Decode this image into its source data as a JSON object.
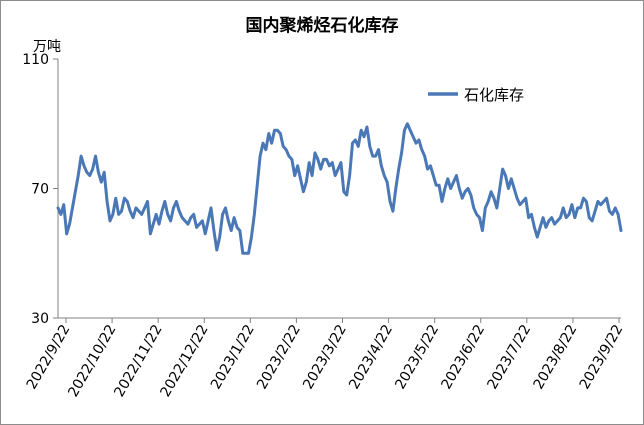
{
  "chart_data": {
    "type": "line",
    "title": "国内聚烯烃石化库存",
    "ylabel": "万吨",
    "xlabel": "",
    "ylim": [
      30,
      110
    ],
    "yticks": [
      30,
      70,
      110
    ],
    "xtick_labels": [
      "2022/9/22",
      "2022/10/22",
      "2022/11/22",
      "2022/12/22",
      "2023/1/22",
      "2023/2/22",
      "2023/3/22",
      "2023/4/22",
      "2023/5/22",
      "2023/6/22",
      "2023/7/22",
      "2023/8/22",
      "2023/9/22"
    ],
    "grid": false,
    "legend_position": "top-right",
    "series": [
      {
        "name": "石化库存",
        "color": "#4a78b6",
        "values": [
          64,
          62,
          65,
          56,
          59,
          64,
          69,
          74,
          80,
          77,
          75,
          74,
          76,
          80,
          75,
          72,
          75,
          66,
          60,
          62,
          67,
          62,
          63,
          67,
          66,
          63,
          61,
          64,
          63,
          62,
          64,
          66,
          56,
          59,
          62,
          59,
          63,
          66,
          62,
          60,
          64,
          66,
          63,
          61,
          60,
          59,
          61,
          62,
          58,
          59,
          60,
          56,
          60,
          64,
          57,
          51,
          55,
          62,
          64,
          60,
          57,
          61,
          58,
          57,
          50,
          50,
          50,
          55,
          62,
          71,
          80,
          84,
          82,
          87,
          84,
          88,
          88,
          87,
          83,
          82,
          80,
          79,
          74,
          77,
          73,
          69,
          72,
          78,
          74,
          81,
          79,
          76,
          79,
          79,
          77,
          78,
          74,
          76,
          78,
          69,
          68,
          74,
          84,
          85,
          83,
          88,
          86,
          89,
          83,
          80,
          80,
          82,
          77,
          74,
          72,
          66,
          63,
          70,
          76,
          81,
          88,
          90,
          88,
          86,
          84,
          85,
          82,
          80,
          76,
          77,
          74,
          71,
          71,
          66,
          70,
          73,
          70,
          72,
          74,
          70,
          67,
          69,
          70,
          68,
          64,
          62,
          61,
          57,
          64,
          66,
          69,
          67,
          64,
          70,
          76,
          74,
          70,
          73,
          70,
          67,
          65,
          66,
          67,
          61,
          62,
          58,
          55,
          58,
          61,
          58,
          60,
          61,
          59,
          60,
          61,
          64,
          61,
          62,
          65,
          61,
          64,
          64,
          67,
          66,
          61,
          60,
          63,
          66,
          65,
          66,
          67,
          63,
          62,
          64,
          62,
          57
        ]
      }
    ]
  }
}
